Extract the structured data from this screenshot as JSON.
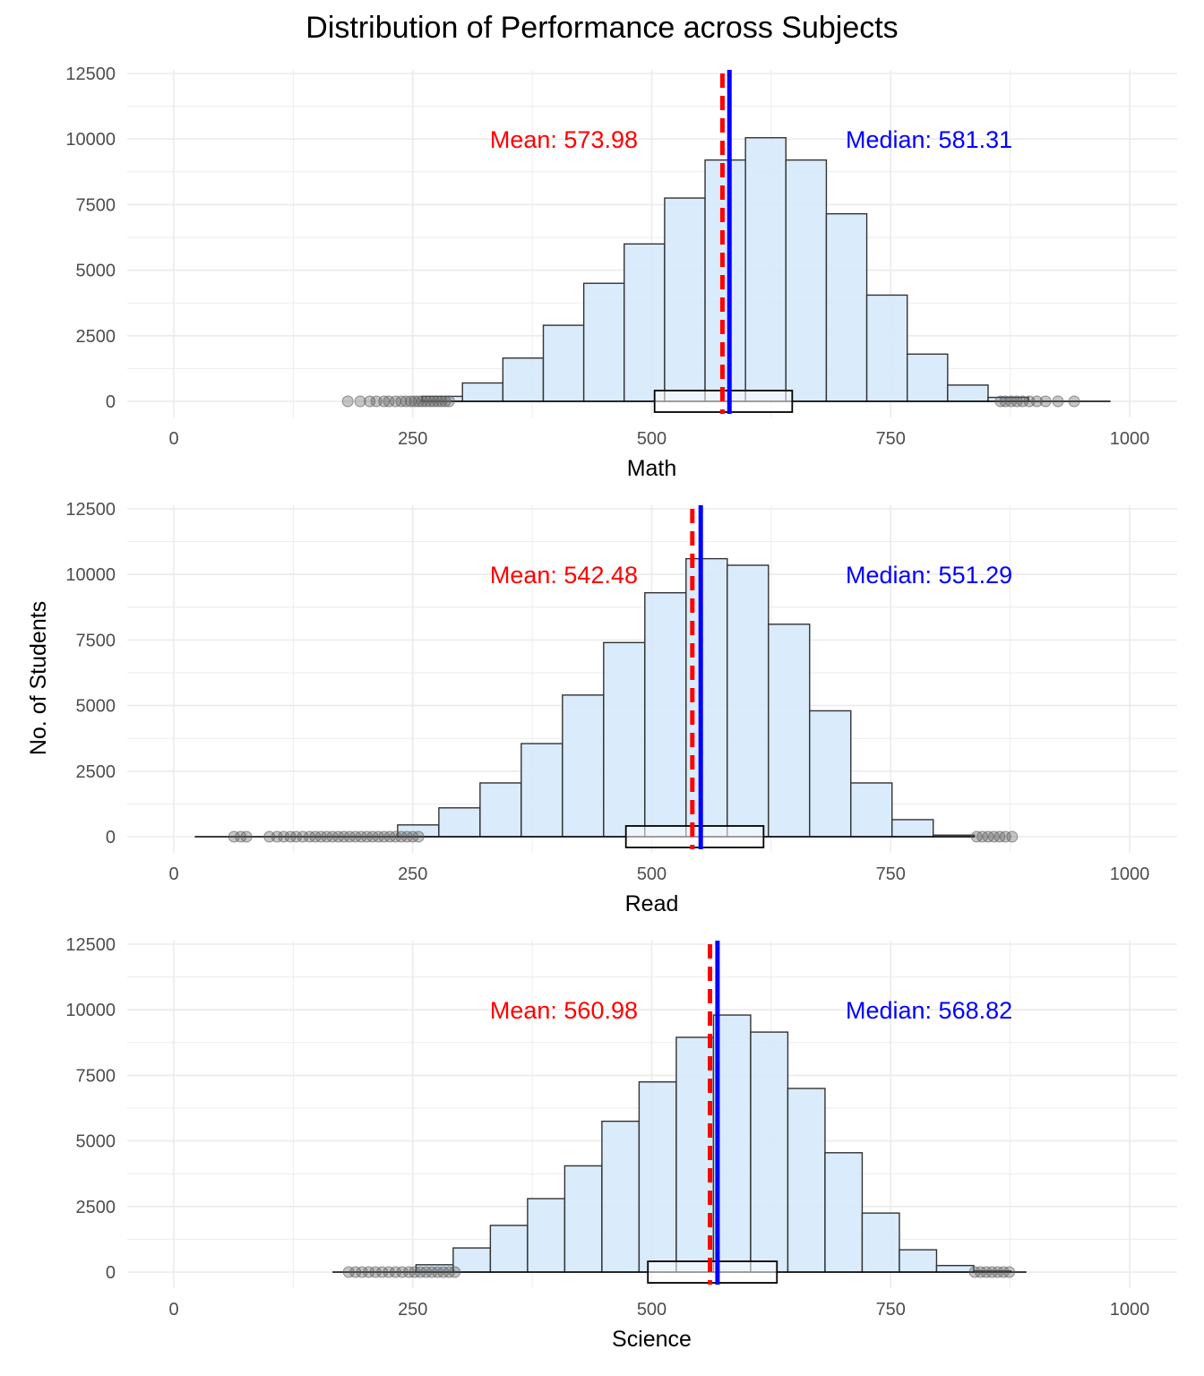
{
  "chart_data": {
    "type": "bar",
    "title": "Distribution of Performance across Subjects",
    "ylabel": "No. of Students",
    "ylim": [
      0,
      12500
    ],
    "xlim": [
      0,
      1000
    ],
    "xticks": [
      0,
      250,
      500,
      750,
      1000
    ],
    "yticks": [
      0,
      2500,
      5000,
      7500,
      10000,
      12500
    ],
    "grid": true,
    "colors": {
      "bar_fill": "#d6e9fb",
      "bar_stroke": "#333333",
      "mean_line": "#ff0000",
      "median_line": "#0000ff",
      "outlier": "#595959",
      "grid": "#ebebeb"
    },
    "panels": [
      {
        "xlabel": "Math",
        "mean": 573.98,
        "median": 581.31,
        "mean_label": "Mean: 573.98",
        "median_label": "Median: 581.31",
        "bin_start": 259.7,
        "bin_width": 42.3,
        "values": [
          190,
          700,
          1650,
          2900,
          4500,
          6000,
          7750,
          9200,
          10050,
          9200,
          7150,
          4050,
          1800,
          620,
          150
        ],
        "box": {
          "q1": 503,
          "median": 581.31,
          "q3": 647,
          "whisker_low": 290,
          "whisker_high": 860
        },
        "whisker_extent": [
          290,
          980
        ],
        "outliers_low": [
          182,
          195,
          205,
          212,
          220,
          225,
          232,
          238,
          243,
          248,
          252,
          256,
          260,
          264,
          268,
          272,
          276,
          280,
          284,
          288
        ],
        "outliers_high": [
          865,
          870,
          876,
          882,
          888,
          895,
          903,
          912,
          925,
          942
        ]
      },
      {
        "xlabel": "Read",
        "mean": 542.48,
        "median": 551.29,
        "mean_label": "Mean: 542.48",
        "median_label": "Median: 551.29",
        "bin_start": 234.2,
        "bin_width": 43.1,
        "values": [
          450,
          1100,
          2050,
          3550,
          5400,
          7400,
          9300,
          10600,
          10350,
          8100,
          4800,
          2050,
          650,
          60
        ],
        "box": {
          "q1": 473,
          "median": 551.29,
          "q3": 617,
          "whisker_low": 260,
          "whisker_high": 838
        },
        "whisker_extent": [
          22,
          838
        ],
        "outliers_low": [
          63,
          70,
          76,
          100,
          108,
          115,
          122,
          128,
          135,
          142,
          148,
          154,
          160,
          166,
          172,
          178,
          184,
          190,
          196,
          202,
          208,
          214,
          220,
          226,
          232,
          238,
          244,
          250,
          256
        ],
        "outliers_high": [
          840,
          846,
          852,
          858,
          864,
          870,
          877
        ]
      },
      {
        "xlabel": "Science",
        "mean": 560.98,
        "median": 568.82,
        "mean_label": "Mean: 560.98",
        "median_label": "Median: 568.82",
        "bin_start": 253.4,
        "bin_width": 38.9,
        "values": [
          280,
          920,
          1780,
          2800,
          4050,
          5750,
          7250,
          8950,
          9800,
          9150,
          7000,
          4550,
          2250,
          850,
          250,
          40
        ],
        "box": {
          "q1": 496,
          "median": 568.82,
          "q3": 631,
          "whisker_low": 295,
          "whisker_high": 838
        },
        "whisker_extent": [
          166,
          892
        ],
        "outliers_low": [
          183,
          190,
          197,
          204,
          211,
          218,
          225,
          232,
          239,
          246,
          252,
          258,
          264,
          270,
          276,
          282,
          288,
          294
        ],
        "outliers_high": [
          838,
          844,
          850,
          856,
          862,
          868,
          874
        ]
      }
    ]
  }
}
